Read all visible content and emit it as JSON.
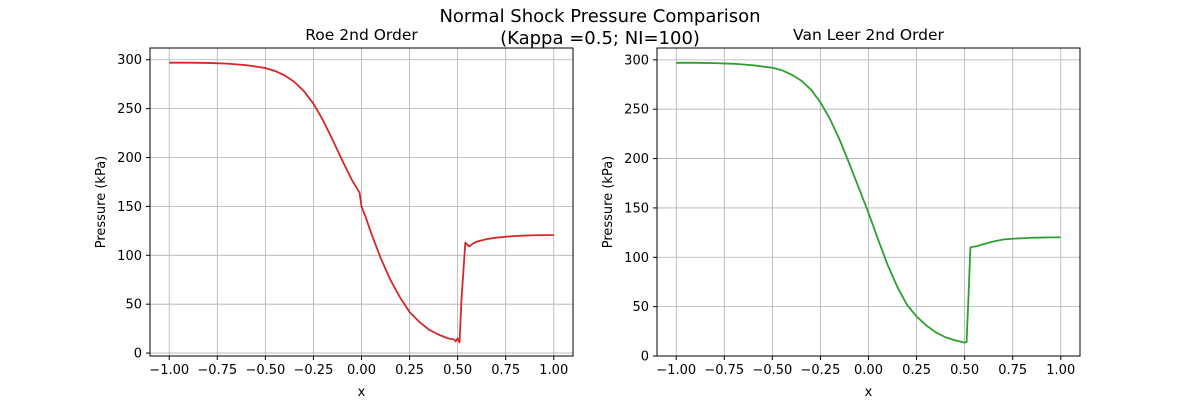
{
  "figure": {
    "title_line1": "Normal Shock Pressure Comparison",
    "title_line2": "(Kappa =0.5; NI=100)"
  },
  "chart_data": [
    {
      "type": "line",
      "title": "Roe 2nd Order",
      "xlabel": "x",
      "ylabel": "Pressure (kPa)",
      "xlim": [
        -1.1,
        1.1
      ],
      "ylim": [
        -3,
        312
      ],
      "xticks": [
        -1.0,
        -0.75,
        -0.5,
        -0.25,
        0.0,
        0.25,
        0.5,
        0.75,
        1.0
      ],
      "xtick_labels": [
        "−1.00",
        "−0.75",
        "−0.50",
        "−0.25",
        "0.00",
        "0.25",
        "0.50",
        "0.75",
        "1.00"
      ],
      "yticks": [
        0,
        50,
        100,
        150,
        200,
        250,
        300
      ],
      "ytick_labels": [
        "0",
        "50",
        "100",
        "150",
        "200",
        "250",
        "300"
      ],
      "grid": true,
      "color": "#d62728",
      "series": [
        {
          "x": [
            -1.0,
            -0.9,
            -0.8,
            -0.7,
            -0.6,
            -0.5,
            -0.45,
            -0.4,
            -0.35,
            -0.3,
            -0.25,
            -0.2,
            -0.15,
            -0.1,
            -0.05,
            -0.01,
            0.0,
            0.02,
            0.05,
            0.1,
            0.15,
            0.2,
            0.25,
            0.3,
            0.35,
            0.4,
            0.45,
            0.48,
            0.49,
            0.5,
            0.51,
            0.52,
            0.54,
            0.56,
            0.58,
            0.6,
            0.65,
            0.7,
            0.75,
            0.8,
            0.85,
            0.9,
            0.95,
            1.0
          ],
          "y": [
            297,
            297,
            296.7,
            296,
            294.5,
            291.5,
            288.5,
            284,
            277.5,
            268,
            255,
            238,
            218,
            197,
            177,
            164,
            150,
            140,
            123,
            97,
            75,
            57,
            42,
            32,
            24,
            19,
            15,
            14,
            12,
            15,
            11,
            55,
            113,
            109,
            112,
            114,
            116.5,
            118,
            119,
            119.7,
            120.2,
            120.5,
            120.6,
            120.6
          ]
        }
      ]
    },
    {
      "type": "line",
      "title": "Van Leer 2nd Order",
      "xlabel": "x",
      "ylabel": "Pressure (kPa)",
      "xlim": [
        -1.1,
        1.1
      ],
      "ylim": [
        0,
        312
      ],
      "xticks": [
        -1.0,
        -0.75,
        -0.5,
        -0.25,
        0.0,
        0.25,
        0.5,
        0.75,
        1.0
      ],
      "xtick_labels": [
        "−1.00",
        "−0.75",
        "−0.50",
        "−0.25",
        "0.00",
        "0.25",
        "0.50",
        "0.75",
        "1.00"
      ],
      "yticks": [
        0,
        50,
        100,
        150,
        200,
        250,
        300
      ],
      "ytick_labels": [
        "0",
        "50",
        "100",
        "150",
        "200",
        "250",
        "300"
      ],
      "grid": true,
      "color": "#2ca02c",
      "series": [
        {
          "x": [
            -1.0,
            -0.9,
            -0.8,
            -0.7,
            -0.6,
            -0.5,
            -0.45,
            -0.4,
            -0.35,
            -0.3,
            -0.25,
            -0.2,
            -0.15,
            -0.1,
            -0.05,
            0.0,
            0.05,
            0.1,
            0.15,
            0.2,
            0.25,
            0.3,
            0.35,
            0.4,
            0.45,
            0.5,
            0.51,
            0.52,
            0.53,
            0.54,
            0.56,
            0.6,
            0.65,
            0.7,
            0.75,
            0.8,
            0.85,
            0.9,
            0.95,
            1.0
          ],
          "y": [
            297,
            297,
            296.7,
            296,
            294.5,
            292,
            289.5,
            285,
            279,
            270,
            257,
            240,
            219,
            195,
            170,
            145,
            118,
            92,
            70,
            52,
            40,
            31,
            24,
            19,
            16,
            13.5,
            14,
            60,
            110,
            110.5,
            111,
            113.5,
            116,
            118,
            118.8,
            119.3,
            119.8,
            120,
            120.2,
            120.2
          ]
        }
      ]
    }
  ]
}
